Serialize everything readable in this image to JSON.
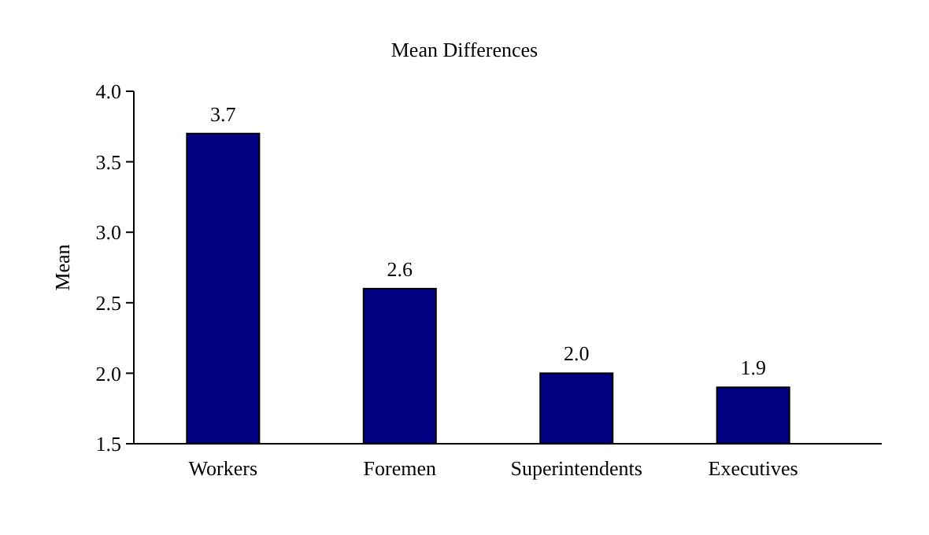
{
  "chart_data": {
    "type": "bar",
    "title": "Mean Differences",
    "ylabel": "Mean",
    "categories": [
      "Workers",
      "Foremen",
      "Superintendents",
      "Executives"
    ],
    "values": [
      3.7,
      2.6,
      2.0,
      1.9
    ],
    "value_labels": [
      "3.7",
      "2.6",
      "2.0",
      "1.9"
    ],
    "color": "#000080",
    "ylim": [
      1.5,
      4.0
    ],
    "yticks": [
      {
        "value": 1.5,
        "label": "1.5"
      },
      {
        "value": 2,
        "label": "2.0"
      },
      {
        "value": 2.5,
        "label": "2.5"
      },
      {
        "value": 3,
        "label": "3.0"
      },
      {
        "value": 3.5,
        "label": "3.5"
      },
      {
        "value": 4,
        "label": "4.0"
      }
    ],
    "grid": false
  }
}
